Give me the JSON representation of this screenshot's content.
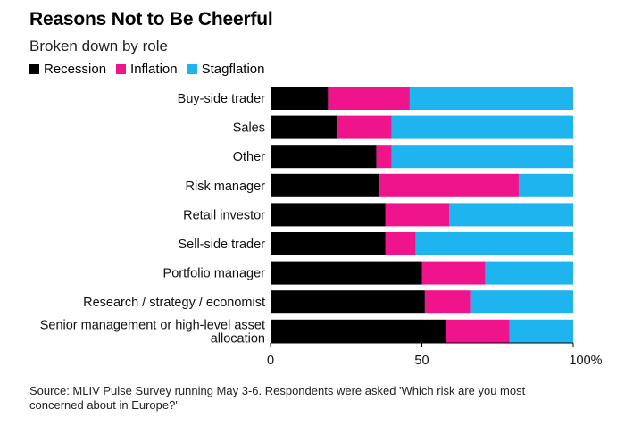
{
  "header": {
    "title": "Reasons Not to Be Cheerful",
    "subtitle": "Broken down by role"
  },
  "colors": {
    "Recession": "#000000",
    "Inflation": "#f0148c",
    "Stagflation": "#1eb4f0"
  },
  "chart_data": {
    "type": "bar",
    "orientation": "horizontal",
    "stacked": true,
    "title": "Reasons Not to Be Cheerful",
    "subtitle": "Broken down by role",
    "categories": [
      [
        "Buy-side trader"
      ],
      [
        "Sales"
      ],
      [
        "Other"
      ],
      [
        "Risk manager"
      ],
      [
        "Retail investor"
      ],
      [
        "Sell-side trader"
      ],
      [
        "Portfolio manager"
      ],
      [
        "Research / strategy / economist"
      ],
      [
        "Senior management or high-level asset",
        "allocation"
      ]
    ],
    "series": [
      {
        "name": "Recession",
        "values": [
          19,
          22,
          35,
          36,
          38,
          38,
          50,
          51,
          58
        ]
      },
      {
        "name": "Inflation",
        "values": [
          27,
          18,
          5,
          46,
          21,
          10,
          21,
          15,
          21
        ]
      },
      {
        "name": "Stagflation",
        "values": [
          54,
          60,
          60,
          18,
          41,
          52,
          29,
          34,
          21
        ]
      }
    ],
    "xlim": [
      0,
      100
    ],
    "xticks": [
      0,
      50,
      100
    ],
    "xtick_labels": [
      "0",
      "50",
      "100%"
    ],
    "grid": false,
    "legend": "top-left"
  },
  "footer": {
    "source_line1": "Source: MLIV Pulse Survey running May 3-6. Respondents were asked 'Which risk are you most",
    "source_line2": "concerned about in Europe?'"
  }
}
